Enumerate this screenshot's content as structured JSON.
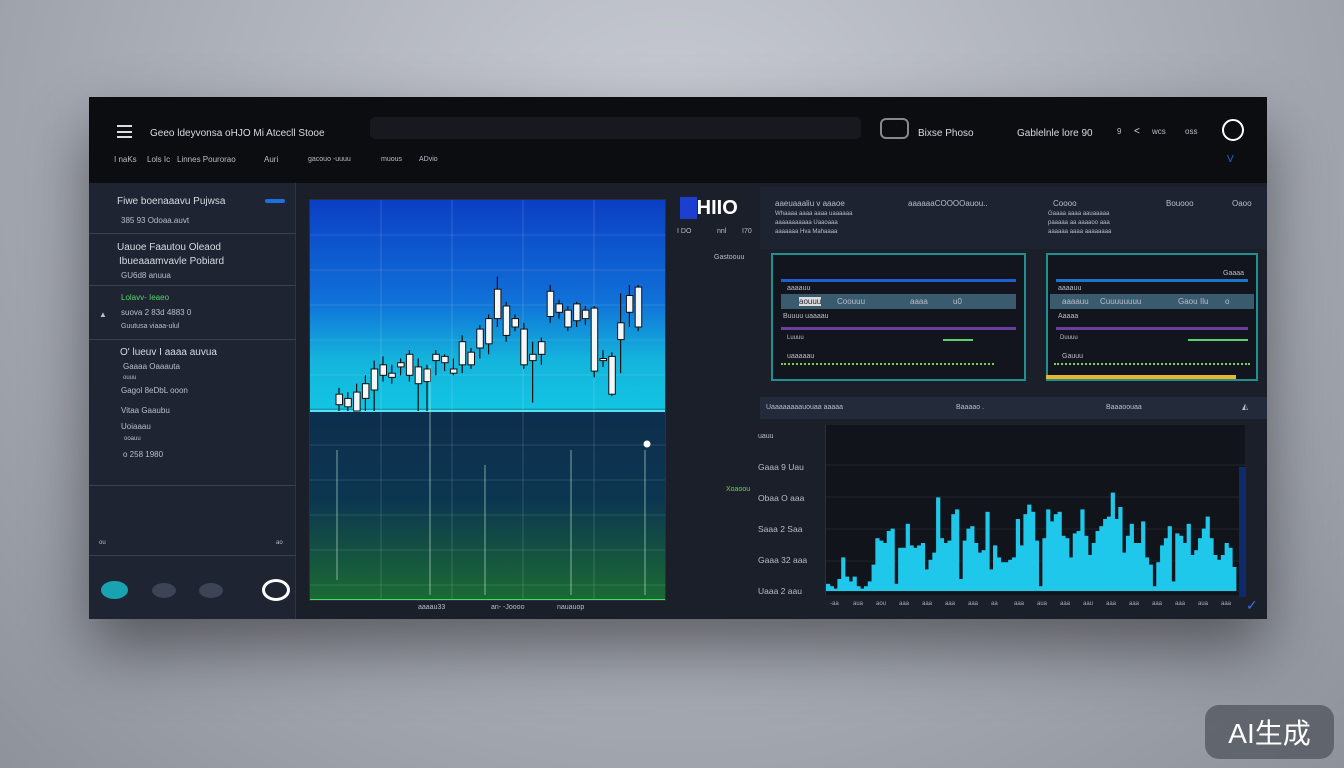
{
  "header": {
    "title": "Geeo ldeyvonsa oHJO Mi Atcecll Stooe",
    "nav": [
      "I naKs",
      "Lols Ic",
      "Linnes Pourorao",
      "Auri",
      "gacouo -uuuu",
      "muous",
      "ADvio"
    ],
    "search_placeholder": "",
    "brand_label": "Bixse Phoso",
    "account_label": "Gablelnle lore 90",
    "icons_text": [
      "9",
      "<",
      "wcs",
      "oss"
    ],
    "chevron": "V"
  },
  "sidebar": {
    "items": [
      {
        "title": "Fiwe boenaaavu Pujwsa",
        "sub": "385 93 Odoaa.auvt"
      },
      {
        "title": "Uauoe Faautou Oleaod",
        "title2": "Ibueaaamvavle Pobiard",
        "sub": "GU6d8 anuua"
      },
      {
        "title": "Lolavv- Ieaeo",
        "sub": "suova 2 83d 4883 0",
        "sub2": "Guutusa viaaa-ulul"
      },
      {
        "title": "O' lueuv I aaaa auvua",
        "sub": "Gaaaa Oaaauta",
        "sub2": "ouuu",
        "l3": "Gagol 8eDbL ooon",
        "l4": "Vitaa Gaaubu",
        "l5": "Uoiaaau",
        "l6": "ooauu",
        "l7": "o 258 1980"
      }
    ],
    "footer_left": "ou",
    "footer_right": "ao"
  },
  "candle_chart": {
    "x_labels": [
      "aaaau33",
      "an- -Joooo",
      "nauauop"
    ],
    "ohlc": [
      [
        3,
        8,
        11,
        0
      ],
      [
        2,
        6,
        9,
        0
      ],
      [
        0,
        9,
        13,
        0
      ],
      [
        6,
        13,
        17,
        0
      ],
      [
        10,
        20,
        24,
        0
      ],
      [
        17,
        22,
        26,
        14
      ],
      [
        18,
        16,
        22,
        13
      ],
      [
        21,
        23,
        25,
        17
      ],
      [
        17,
        27,
        29,
        14
      ],
      [
        21,
        13,
        25,
        0
      ],
      [
        14,
        20,
        22,
        0
      ],
      [
        24,
        27,
        29,
        17
      ],
      [
        23,
        26,
        27,
        19
      ],
      [
        20,
        18,
        25,
        17
      ],
      [
        22,
        33,
        36,
        18
      ],
      [
        22,
        28,
        30,
        20
      ],
      [
        30,
        39,
        41,
        25
      ],
      [
        32,
        44,
        46,
        27
      ],
      [
        44,
        58,
        64,
        40
      ],
      [
        50,
        36,
        52,
        33
      ],
      [
        44,
        40,
        46,
        38
      ],
      [
        39,
        22,
        42,
        20
      ],
      [
        27,
        24,
        33,
        4
      ],
      [
        33,
        27,
        35,
        22
      ],
      [
        45,
        57,
        60,
        42
      ],
      [
        51,
        47,
        53,
        44
      ],
      [
        48,
        40,
        50,
        38
      ],
      [
        43,
        51,
        52,
        40
      ],
      [
        48,
        44,
        50,
        41
      ],
      [
        49,
        19,
        50,
        16
      ],
      [
        24,
        25,
        29,
        21
      ],
      [
        26,
        8,
        28,
        7
      ],
      [
        34,
        42,
        56,
        18
      ],
      [
        47,
        55,
        60,
        40
      ],
      [
        59,
        40,
        60,
        38
      ]
    ]
  },
  "middle": {
    "logo": "HIIO",
    "labels": [
      "I DO",
      "nnl",
      "I70",
      "Gastoouu",
      "Xoaoou"
    ]
  },
  "right_top": {
    "cols": [
      {
        "title": "aaeuaaaliu v aaaoe",
        "lines": [
          "Whaaaa aaaa aaaa uaaaaaa",
          "aaaaaaaaaaa Uaaoaaa",
          "aaaaaaa Hva Mahaaaa"
        ]
      },
      {
        "title": "aaaaaaCOOOOauou.."
      },
      {
        "title": "Coooo",
        "lines": [
          "Gaaaa aaaa aauaaaaa",
          "paaaaa aa aaaaoo aaa",
          "aaaaaa aaaa aaaaaaaa"
        ]
      },
      {
        "title": "Bouooo"
      },
      {
        "title": "Oaoo"
      }
    ]
  },
  "cards": [
    {
      "top": "",
      "row": [
        "aouuu",
        "Coouuu",
        "aaaa",
        "u0"
      ],
      "l1": "aaaauu",
      "l2": "Buuuu uaaaau",
      "l3": "Luuuu",
      "l4": "uaaaaau",
      "colors": [
        "#1d5fd1",
        "#6b3fa0"
      ]
    },
    {
      "top": "Gaaaa",
      "row": [
        "aaaauu",
        "Cuuuuuuuu",
        "Gaou",
        "Ilu",
        "o"
      ],
      "l1": "aaaauu",
      "l2": "Aaaaa",
      "l3": "Duuuu",
      "l4": "Gauuu",
      "colors": [
        "#1d74c9",
        "#6b3fa0"
      ],
      "accent": "#e8b82a"
    }
  ],
  "histogram": {
    "header": [
      "Uaaaaaaaauouaa aaaaa",
      "Baaaao .",
      "Baaaoouaa"
    ],
    "unit": "uauu",
    "y_labels": [
      "Gaaa 9 Uau",
      "Obaa O aaa",
      "Saaa 2 Saa",
      "Gaaa 32 aaa",
      "Uaaa 2 aau"
    ],
    "values": [
      6,
      4,
      2,
      10,
      28,
      12,
      8,
      12,
      4,
      2,
      4,
      8,
      22,
      44,
      42,
      40,
      50,
      52,
      6,
      36,
      36,
      56,
      38,
      36,
      38,
      40,
      18,
      26,
      32,
      78,
      44,
      40,
      42,
      64,
      68,
      10,
      42,
      52,
      54,
      40,
      32,
      34,
      66,
      18,
      38,
      28,
      24,
      24,
      26,
      28,
      60,
      38,
      64,
      72,
      66,
      42,
      4,
      44,
      68,
      58,
      64,
      66,
      46,
      44,
      28,
      48,
      50,
      68,
      46,
      30,
      40,
      50,
      54,
      60,
      62,
      82,
      60,
      70,
      32,
      46,
      56,
      40,
      40,
      58,
      28,
      22,
      4,
      24,
      38,
      44,
      54,
      8,
      48,
      46,
      40,
      56,
      30,
      34,
      44,
      52,
      62,
      44,
      30,
      26,
      30,
      40,
      36,
      20
    ],
    "x_labels": [
      "-aa",
      "aua",
      "aou",
      "aaa",
      "aaa",
      "aaa",
      "aaa",
      "aa",
      "aaa",
      "aua",
      "aaa",
      "aau",
      "aaa",
      "aaa",
      "aaa",
      "aaa",
      "aua",
      "aaa"
    ]
  },
  "footer_buttons": [
    "",
    "",
    "",
    ""
  ],
  "watermark": "AI生成",
  "colors": {
    "accent": "#1fd0ee",
    "sidebar_green": "#58d26a"
  }
}
